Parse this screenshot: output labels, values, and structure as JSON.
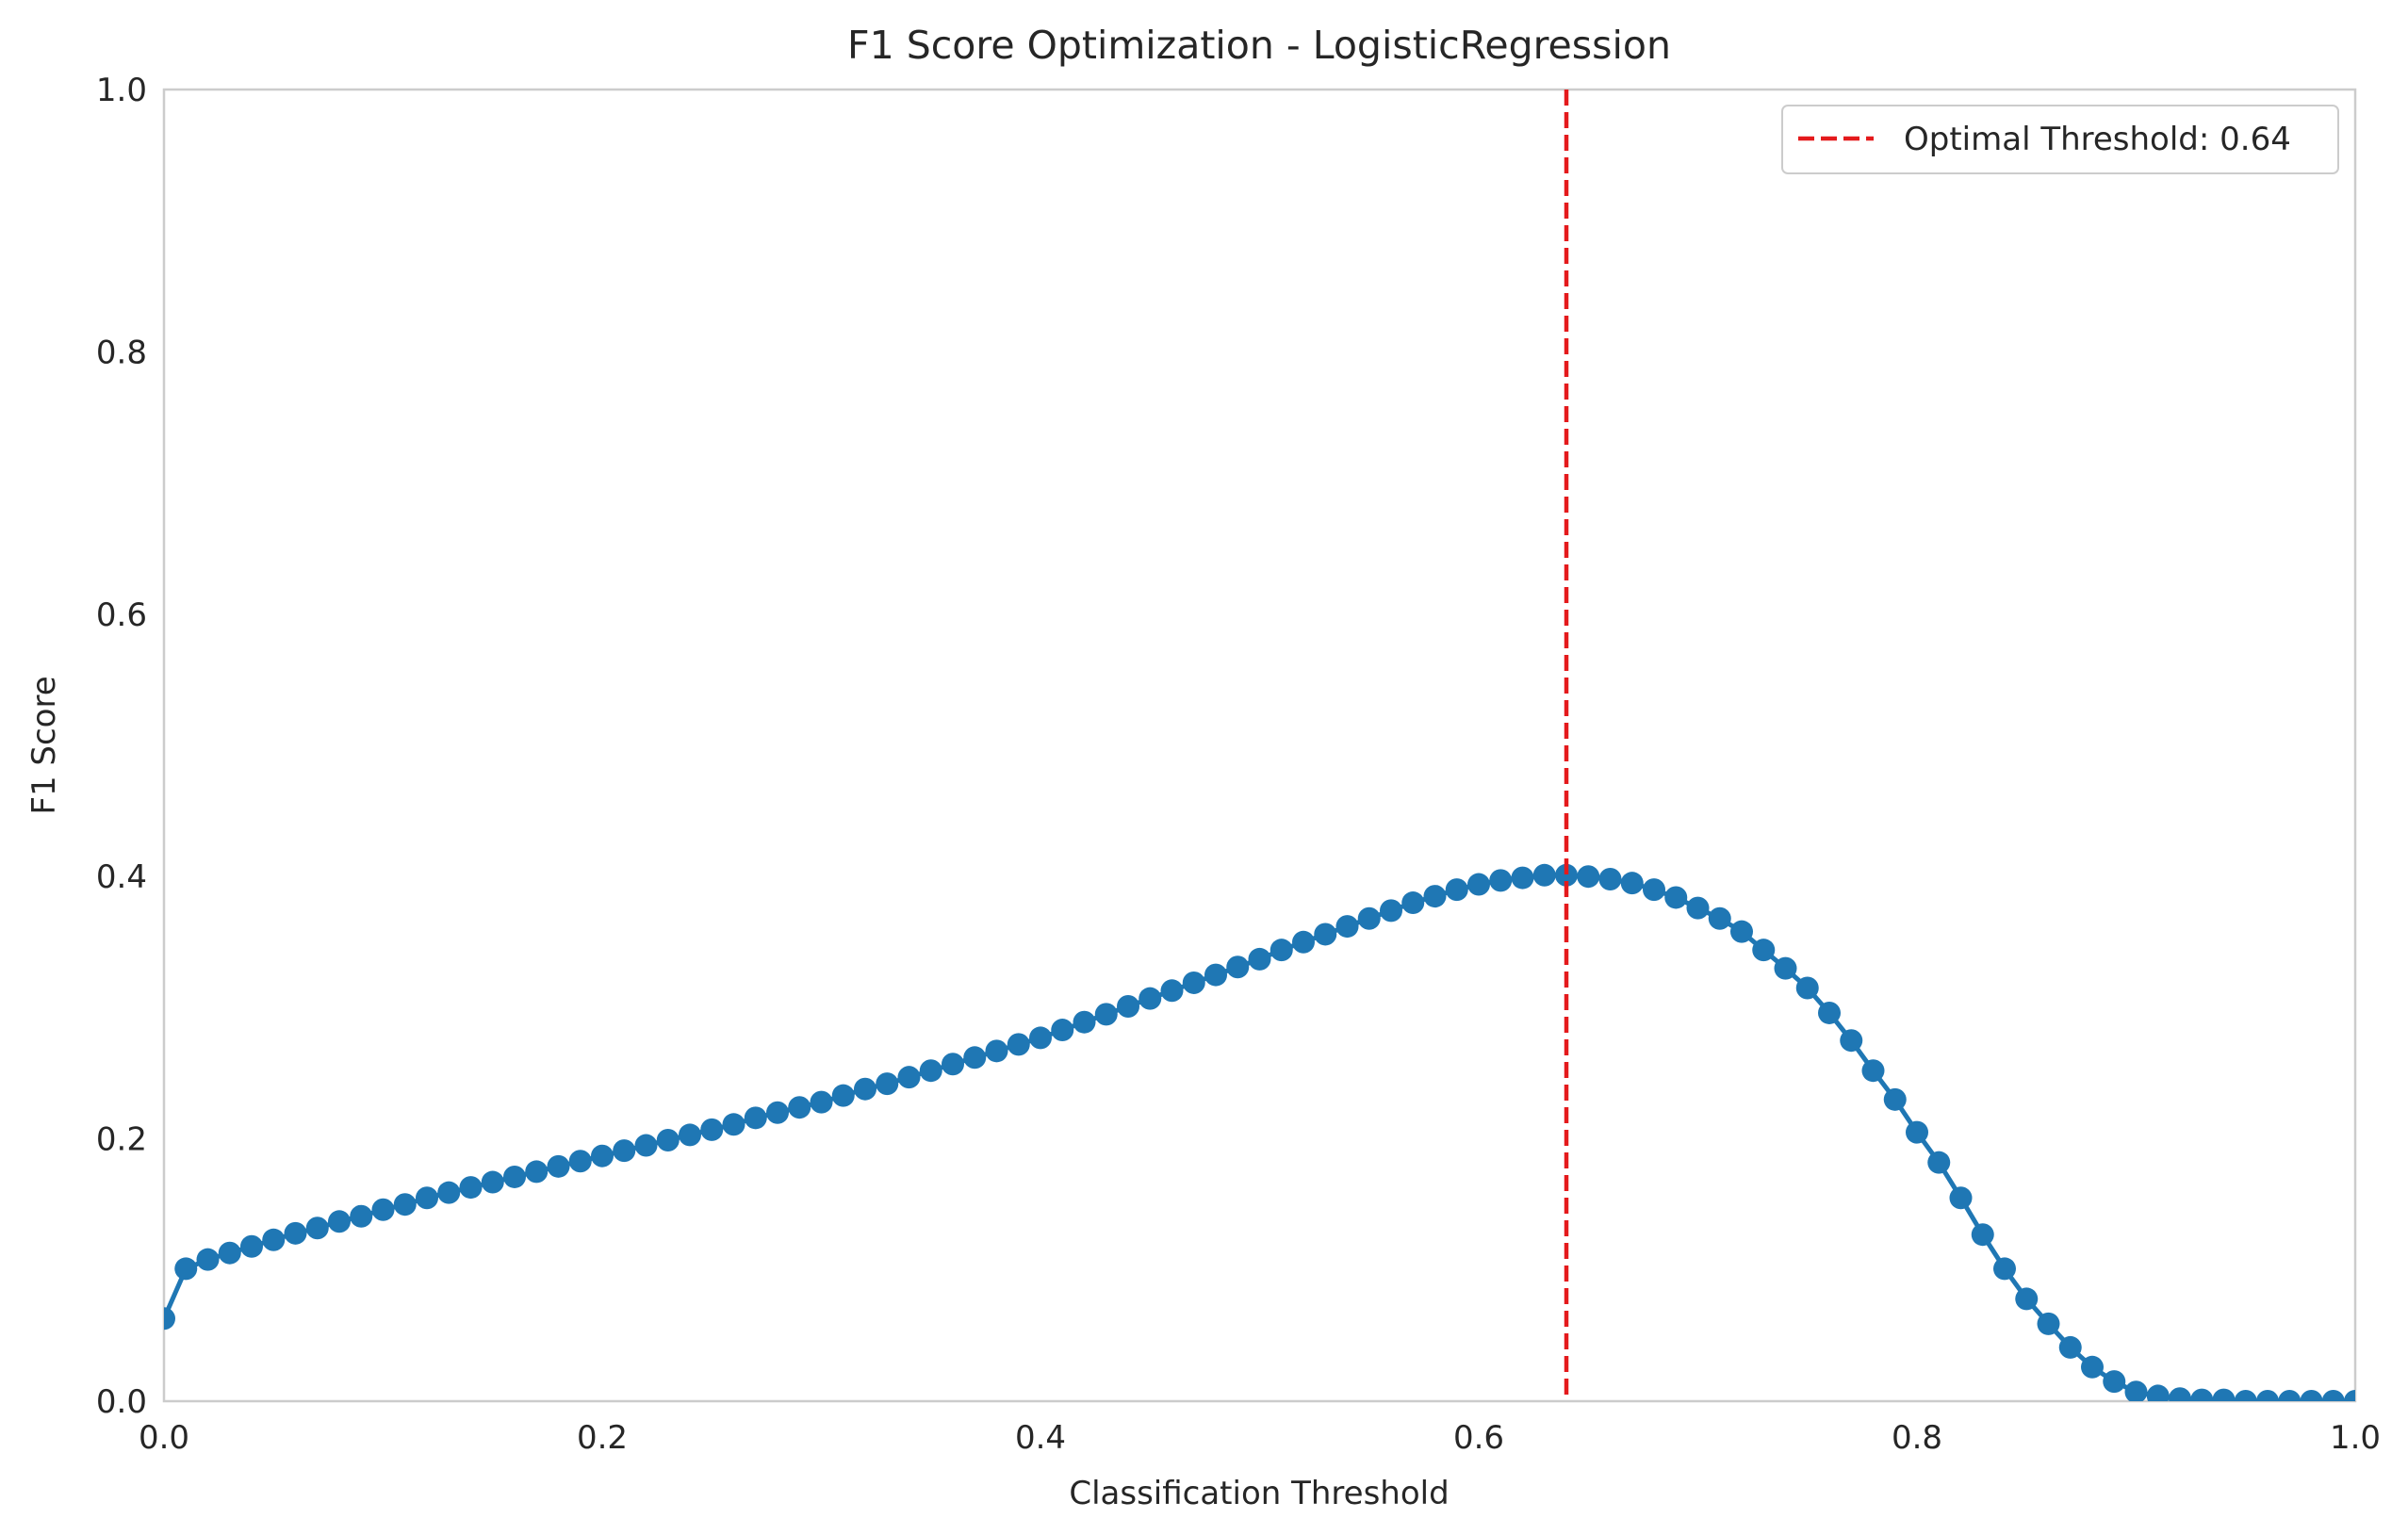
{
  "chart_data": {
    "type": "line",
    "title": "F1 Score Optimization - LogisticRegression",
    "xlabel": "Classification Threshold",
    "ylabel": "F1 Score",
    "xlim": [
      0.0,
      1.0
    ],
    "ylim": [
      0.0,
      1.0
    ],
    "xticks": [
      "0.0",
      "0.2",
      "0.4",
      "0.6",
      "0.8",
      "1.0"
    ],
    "yticks": [
      "0.0",
      "0.2",
      "0.4",
      "0.6",
      "0.8",
      "1.0"
    ],
    "grid": false,
    "legend_position": "top-right",
    "series": [
      {
        "color": "#1f77b4",
        "marker": "circle",
        "x": [
          0.0,
          0.01,
          0.02,
          0.03,
          0.04,
          0.05,
          0.06,
          0.07,
          0.08,
          0.09,
          0.1,
          0.11,
          0.12,
          0.13,
          0.14,
          0.15,
          0.16,
          0.17,
          0.18,
          0.19,
          0.2,
          0.21,
          0.22,
          0.23,
          0.24,
          0.25,
          0.26,
          0.27,
          0.28,
          0.29,
          0.3,
          0.31,
          0.32,
          0.33,
          0.34,
          0.35,
          0.36,
          0.37,
          0.38,
          0.39,
          0.4,
          0.41,
          0.42,
          0.43,
          0.44,
          0.45,
          0.46,
          0.47,
          0.48,
          0.49,
          0.5,
          0.51,
          0.52,
          0.53,
          0.54,
          0.55,
          0.56,
          0.57,
          0.58,
          0.59,
          0.6,
          0.61,
          0.62,
          0.63,
          0.64,
          0.65,
          0.66,
          0.67,
          0.68,
          0.69,
          0.7,
          0.71,
          0.72,
          0.73,
          0.74,
          0.75,
          0.76,
          0.77,
          0.78,
          0.79,
          0.8,
          0.81,
          0.82,
          0.83,
          0.84,
          0.85,
          0.86,
          0.87,
          0.88,
          0.89,
          0.9,
          0.91,
          0.92,
          0.93,
          0.94,
          0.95,
          0.96,
          0.97,
          0.98,
          0.99,
          1.0
        ],
        "y": [
          0.063,
          0.101,
          0.108,
          0.113,
          0.118,
          0.123,
          0.128,
          0.132,
          0.137,
          0.141,
          0.146,
          0.15,
          0.155,
          0.159,
          0.163,
          0.167,
          0.171,
          0.175,
          0.179,
          0.183,
          0.187,
          0.191,
          0.195,
          0.199,
          0.203,
          0.207,
          0.211,
          0.216,
          0.22,
          0.224,
          0.228,
          0.233,
          0.238,
          0.242,
          0.247,
          0.252,
          0.257,
          0.262,
          0.267,
          0.272,
          0.277,
          0.283,
          0.289,
          0.295,
          0.301,
          0.307,
          0.313,
          0.319,
          0.325,
          0.331,
          0.337,
          0.344,
          0.35,
          0.356,
          0.362,
          0.368,
          0.374,
          0.38,
          0.385,
          0.39,
          0.394,
          0.397,
          0.399,
          0.401,
          0.401,
          0.4,
          0.398,
          0.395,
          0.39,
          0.384,
          0.376,
          0.368,
          0.358,
          0.344,
          0.33,
          0.315,
          0.296,
          0.275,
          0.252,
          0.23,
          0.205,
          0.182,
          0.155,
          0.127,
          0.101,
          0.078,
          0.059,
          0.041,
          0.026,
          0.015,
          0.007,
          0.004,
          0.002,
          0.001,
          0.001,
          0.0,
          0.0,
          0.0,
          0.0,
          0.0,
          0.0
        ]
      }
    ],
    "reference_lines": [
      {
        "orientation": "vertical",
        "x": 0.64,
        "style": "dashed",
        "color": "#e41a1c",
        "label": "Optimal Threshold: 0.64"
      }
    ]
  }
}
